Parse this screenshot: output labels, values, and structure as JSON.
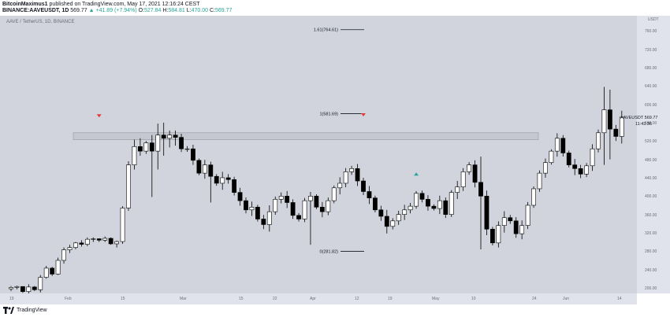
{
  "header": {
    "author": "BitcoinMaximus1",
    "published_text": "published on TradingView.com, May 17, 2021 12:16:24 CEST",
    "symbol_line": "BINANCE:AAVEUSDT, 1D",
    "last": "569.77",
    "change": "▲ +41.89 (+7.94%)",
    "o_label": "O:",
    "o_val": "527.84",
    "h_label": "H:",
    "h_val": "584.81",
    "l_label": "L:",
    "l_val": "470.00",
    "c_label": "C:",
    "c_val": "569.77"
  },
  "chart": {
    "title": "AAVE / TetherUS, 1D, BINANCE",
    "currency": "USDT",
    "price_tag": "AAVEUSDT",
    "price_tag_value": "569.77",
    "countdown": "11:43:36"
  },
  "y_ticks": [
    "760.00",
    "720.00",
    "680.00",
    "640.00",
    "600.00",
    "560.00",
    "520.00",
    "480.00",
    "440.00",
    "400.00",
    "360.00",
    "320.00",
    "280.00",
    "240.00",
    "200.00"
  ],
  "x_ticks": [
    "19",
    "Feb",
    "15",
    "Mar",
    "15",
    "22",
    "Apr",
    "12",
    "19",
    "May",
    "10",
    "24",
    "Jun",
    "14"
  ],
  "fib_levels": [
    {
      "label": "1.61(764.61)",
      "price": 764.61
    },
    {
      "label": "1(581.69)",
      "price": 581.69
    },
    {
      "label": "0(281.82)",
      "price": 281.82
    }
  ],
  "resistance_zone": {
    "low": 525,
    "high": 540,
    "color": "#c4c7cf"
  },
  "markers": [
    {
      "type": "down",
      "price": 577,
      "index": 15,
      "color": "#e53935"
    },
    {
      "type": "down",
      "price": 579,
      "index": 60,
      "color": "#e53935"
    },
    {
      "type": "up",
      "price": 450,
      "index": 69,
      "color": "#26a69a"
    }
  ],
  "colors": {
    "up_body": "#ffffff",
    "down_body": "#000000",
    "wick": "#000000",
    "bg": "#d1d4dc"
  },
  "footer": {
    "brand": "TradingView"
  },
  "chart_data": {
    "type": "candlestick",
    "title": "AAVE / TetherUS, 1D, BINANCE",
    "ylim": [
      190,
      795
    ],
    "candles": [
      [
        200,
        206,
        195,
        203
      ],
      [
        203,
        207,
        199,
        205
      ],
      [
        205,
        205,
        191,
        194
      ],
      [
        194,
        210,
        190,
        204
      ],
      [
        204,
        206,
        195,
        198
      ],
      [
        198,
        230,
        192,
        225
      ],
      [
        225,
        250,
        222,
        245
      ],
      [
        245,
        248,
        228,
        232
      ],
      [
        232,
        268,
        230,
        262
      ],
      [
        262,
        290,
        255,
        285
      ],
      [
        285,
        296,
        278,
        290
      ],
      [
        290,
        302,
        286,
        300
      ],
      [
        300,
        306,
        292,
        297
      ],
      [
        297,
        312,
        293,
        308
      ],
      [
        308,
        312,
        302,
        309
      ],
      [
        309,
        310,
        302,
        306
      ],
      [
        306,
        314,
        302,
        310
      ],
      [
        310,
        312,
        296,
        298
      ],
      [
        298,
        305,
        290,
        303
      ],
      [
        303,
        380,
        298,
        376
      ],
      [
        376,
        478,
        370,
        470
      ],
      [
        470,
        525,
        460,
        510
      ],
      [
        510,
        528,
        490,
        500
      ],
      [
        500,
        522,
        494,
        518
      ],
      [
        518,
        535,
        400,
        500
      ],
      [
        500,
        560,
        460,
        535
      ],
      [
        535,
        562,
        490,
        528
      ],
      [
        528,
        545,
        508,
        535
      ],
      [
        535,
        545,
        512,
        530
      ],
      [
        530,
        538,
        498,
        505
      ]
    ]
  }
}
